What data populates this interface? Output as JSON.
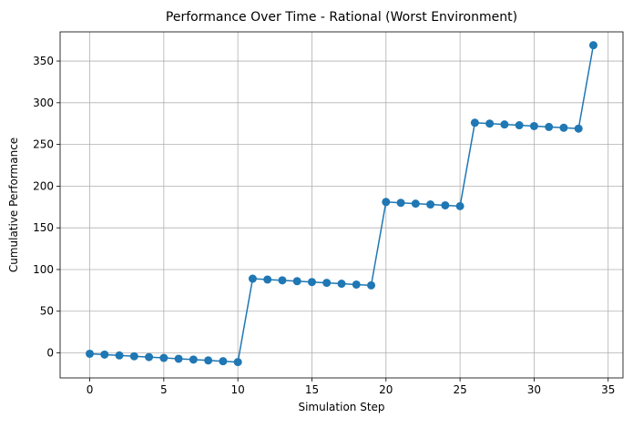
{
  "chart_data": {
    "type": "line",
    "title": "Performance Over Time - Rational (Worst Environment)",
    "xlabel": "Simulation Step",
    "ylabel": "Cumulative Performance",
    "xlim": [
      -2,
      36
    ],
    "ylim": [
      -30,
      385
    ],
    "xticks": [
      0,
      5,
      10,
      15,
      20,
      25,
      30,
      35
    ],
    "yticks": [
      0,
      50,
      100,
      150,
      200,
      250,
      300,
      350
    ],
    "grid": true,
    "marker": "circle",
    "series": [
      {
        "color": "#1f77b4",
        "x": [
          0,
          1,
          2,
          3,
          4,
          5,
          6,
          7,
          8,
          9,
          10,
          11,
          12,
          13,
          14,
          15,
          16,
          17,
          18,
          19,
          20,
          21,
          22,
          23,
          24,
          25,
          26,
          27,
          28,
          29,
          30,
          31,
          32,
          33,
          34
        ],
        "y": [
          -1,
          -2,
          -3,
          -4,
          -5,
          -6,
          -7,
          -8,
          -9,
          -10,
          -11,
          89,
          88,
          87,
          86,
          85,
          84,
          83,
          82,
          81,
          181,
          180,
          179,
          178,
          177,
          176,
          276,
          275,
          274,
          273,
          272,
          271,
          270,
          269,
          369
        ]
      }
    ]
  }
}
